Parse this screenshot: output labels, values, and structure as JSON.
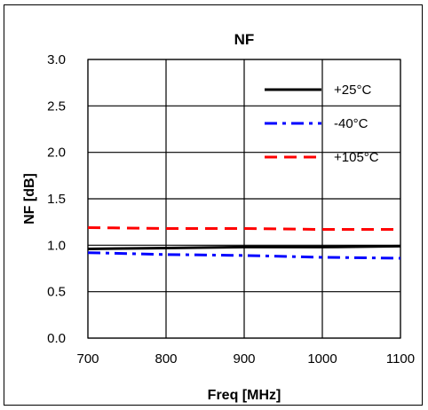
{
  "chart_data": {
    "type": "line",
    "title": "NF",
    "xlabel": "Freq [MHz]",
    "ylabel": "NF [dB]",
    "xlim": [
      700,
      1100
    ],
    "ylim": [
      0.0,
      3.0
    ],
    "x_ticks": [
      700,
      800,
      900,
      1000,
      1100
    ],
    "y_ticks": [
      "0.0",
      "0.5",
      "1.0",
      "1.5",
      "2.0",
      "2.5",
      "3.0"
    ],
    "grid": true,
    "legend_position": "top-right",
    "series": [
      {
        "name": "+25°C",
        "color": "#000000",
        "dash": "solid",
        "x": [
          700,
          800,
          900,
          1000,
          1100
        ],
        "y": [
          0.96,
          0.97,
          0.98,
          0.98,
          0.99
        ]
      },
      {
        "name": "-40°C",
        "color": "#0000ff",
        "dash": "dashdot",
        "x": [
          700,
          800,
          900,
          1000,
          1100
        ],
        "y": [
          0.92,
          0.9,
          0.89,
          0.87,
          0.86
        ]
      },
      {
        "name": "+105°C",
        "color": "#ff0000",
        "dash": "dash",
        "x": [
          700,
          800,
          900,
          1000,
          1100
        ],
        "y": [
          1.19,
          1.18,
          1.18,
          1.17,
          1.17
        ]
      }
    ]
  }
}
